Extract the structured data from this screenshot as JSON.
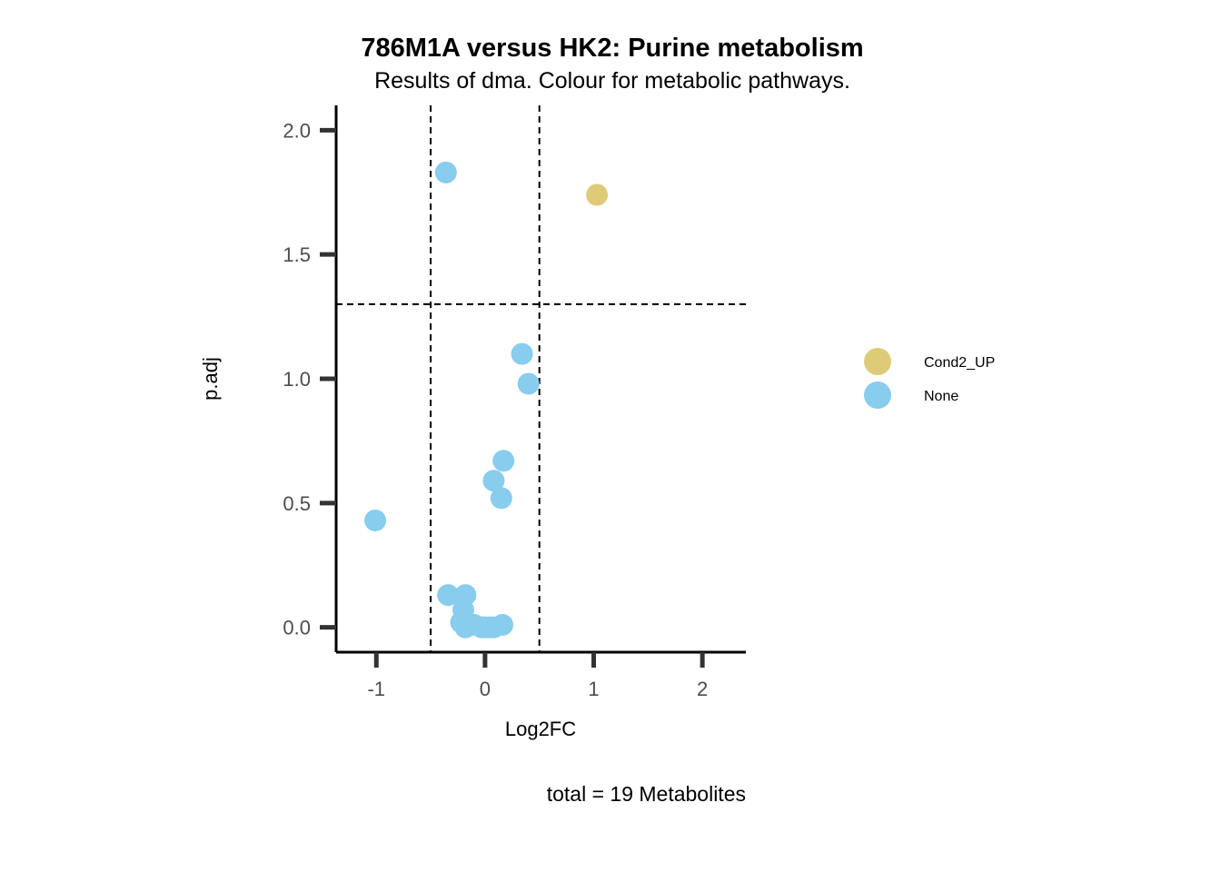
{
  "chart_data": {
    "type": "scatter",
    "title": "786M1A versus HK2: Purine metabolism",
    "subtitle": "Results of dma. Colour for metabolic pathways.",
    "xlabel": "Log2FC",
    "ylabel": "p.adj",
    "caption": "total = 19 Metabolites",
    "xlim": [
      -1.37,
      2.4
    ],
    "ylim": [
      -0.1,
      2.1
    ],
    "x_ticks": [
      -1,
      0,
      1,
      2
    ],
    "x_tick_labels": [
      "-1",
      "0",
      "1",
      "2"
    ],
    "y_ticks": [
      0.0,
      0.5,
      1.0,
      1.5,
      2.0
    ],
    "y_tick_labels": [
      "0.0",
      "0.5",
      "1.0",
      "1.5",
      "2.0"
    ],
    "vlines": [
      -0.5,
      0.5
    ],
    "hline": 1.3,
    "grid": false,
    "legend_position": "right",
    "series": [
      {
        "name": "Cond2_UP",
        "color": "#DDCB77",
        "points": [
          {
            "x": 1.03,
            "y": 1.74
          }
        ]
      },
      {
        "name": "None",
        "color": "#88CCEE",
        "points": [
          {
            "x": -0.36,
            "y": 1.83
          },
          {
            "x": 0.34,
            "y": 1.1
          },
          {
            "x": 0.4,
            "y": 0.98
          },
          {
            "x": 0.17,
            "y": 0.67
          },
          {
            "x": 0.08,
            "y": 0.59
          },
          {
            "x": 0.15,
            "y": 0.52
          },
          {
            "x": -1.01,
            "y": 0.43
          },
          {
            "x": -0.34,
            "y": 0.13
          },
          {
            "x": -0.18,
            "y": 0.13
          },
          {
            "x": -0.2,
            "y": 0.07
          },
          {
            "x": -0.22,
            "y": 0.02
          },
          {
            "x": -0.18,
            "y": 0.0
          },
          {
            "x": -0.1,
            "y": 0.01
          },
          {
            "x": -0.03,
            "y": 0.0
          },
          {
            "x": 0.0,
            "y": 0.0
          },
          {
            "x": 0.04,
            "y": 0.0
          },
          {
            "x": 0.08,
            "y": 0.0
          },
          {
            "x": 0.16,
            "y": 0.01
          }
        ]
      }
    ]
  }
}
